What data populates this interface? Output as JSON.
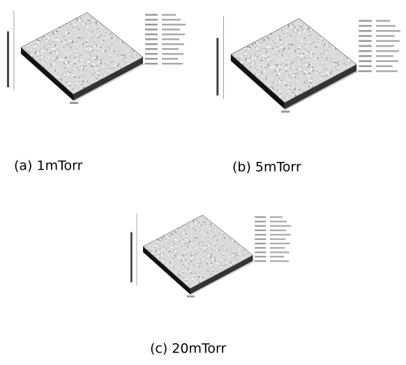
{
  "panels": [
    {
      "caption": "(a) 1mTorr"
    },
    {
      "caption": "(b) 5mTorr"
    },
    {
      "caption": "(c) 20mTorr"
    }
  ]
}
